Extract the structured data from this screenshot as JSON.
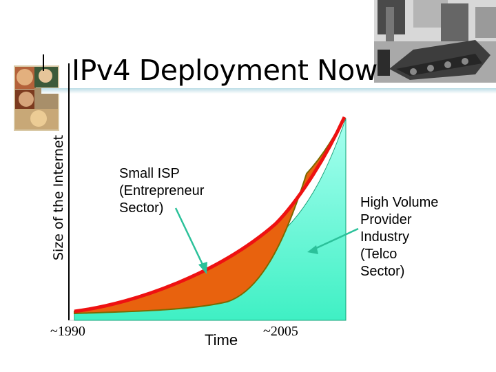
{
  "slide": {
    "title": "IPv4 Deployment Now",
    "y_axis_label": "Size of the Internet",
    "x_axis_label": "Time",
    "x_ticks": [
      "~1990",
      "~2005"
    ],
    "labels": {
      "small_isp": "Small ISP\n(Entrepreneur\nSector)",
      "high_volume": "High Volume\nProvider\nIndustry\n(Telco\nSector)"
    },
    "images": {
      "left_decoration": "painting-collage",
      "top_right_photo": "wrecked-tank-photo"
    },
    "colors": {
      "telco_fill": "#6efbd6",
      "isp_fill": "#e8620e",
      "edge_line": "#ee1111",
      "arrow": "#2bc19a"
    }
  }
}
